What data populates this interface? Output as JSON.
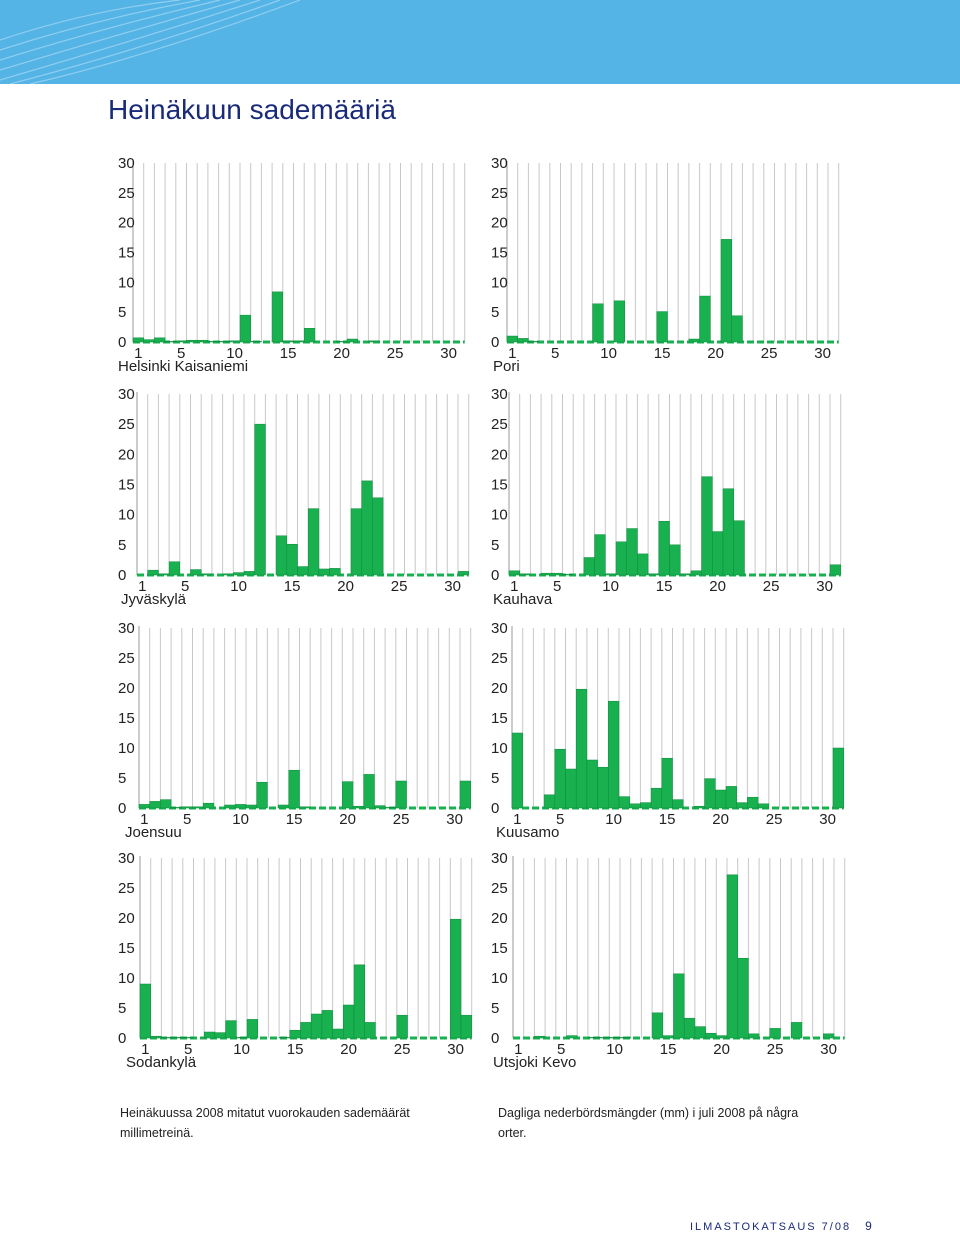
{
  "page": {
    "title": "Heinäkuun sademääriä",
    "caption_fi": "Heinäkuussa 2008 mitatut vuorokauden sademäärät millimetreinä.",
    "caption_sv": "Dagliga nederbördsmängder (mm) i juli 2008 på några orter.",
    "footer_publication": "ILMASTOKATSAUS 7/08",
    "footer_page": "9"
  },
  "colors": {
    "bar": "#19b050",
    "grid": "#c8c8c8",
    "dash": "#19b050",
    "text": "#222222",
    "title": "#1a2a7a",
    "banner": "#55b4e6"
  },
  "chart_data": [
    {
      "type": "bar",
      "title": "Helsinki Kaisaniemi",
      "ylim": [
        0,
        30
      ],
      "yticks": [
        "0",
        "5",
        "10",
        "15",
        "20",
        "25",
        "30"
      ],
      "xticks": [
        "1",
        "5",
        "10",
        "15",
        "20",
        "25",
        "30"
      ],
      "values": [
        0.7,
        0.4,
        0.7,
        0.1,
        0.2,
        0.3,
        0.3,
        0.1,
        0.1,
        0.2,
        4.5,
        0.1,
        0,
        8.4,
        0.2,
        0.2,
        2.3,
        0,
        0,
        0.1,
        0.5,
        0,
        0.2,
        0,
        0,
        0,
        0,
        0,
        0,
        0,
        0
      ]
    },
    {
      "type": "bar",
      "title": "Pori",
      "ylim": [
        0,
        30
      ],
      "yticks": [
        "0",
        "5",
        "10",
        "15",
        "20",
        "25",
        "30"
      ],
      "xticks": [
        "1",
        "5",
        "10",
        "15",
        "20",
        "25",
        "30"
      ],
      "values": [
        1.0,
        0.6,
        0.1,
        0,
        0,
        0,
        0,
        0,
        6.4,
        0,
        6.9,
        0,
        0,
        0,
        5.1,
        0,
        0,
        0.5,
        7.7,
        0,
        17.2,
        4.4,
        0,
        0,
        0,
        0,
        0,
        0,
        0,
        0,
        0
      ]
    },
    {
      "type": "bar",
      "title": "Jyväskylä",
      "ylim": [
        0,
        30
      ],
      "yticks": [
        "0",
        "5",
        "10",
        "15",
        "20",
        "25",
        "30"
      ],
      "xticks": [
        "1",
        "5",
        "10",
        "15",
        "20",
        "25",
        "30"
      ],
      "values": [
        0,
        0.8,
        0.2,
        2.2,
        0,
        0.9,
        0.2,
        0,
        0.2,
        0.4,
        0.6,
        25.0,
        0,
        6.5,
        5.1,
        1.4,
        11.0,
        1.0,
        1.1,
        0,
        11.0,
        15.6,
        12.8,
        0,
        0,
        0,
        0,
        0,
        0,
        0,
        0.6
      ]
    },
    {
      "type": "bar",
      "title": "Kauhava",
      "ylim": [
        0,
        30
      ],
      "yticks": [
        "0",
        "5",
        "10",
        "15",
        "20",
        "25",
        "30"
      ],
      "xticks": [
        "1",
        "5",
        "10",
        "15",
        "20",
        "25",
        "30"
      ],
      "values": [
        0.7,
        0.2,
        0,
        0.3,
        0.3,
        0.1,
        0,
        2.9,
        6.7,
        0.2,
        5.5,
        7.7,
        3.5,
        0.2,
        8.9,
        5.0,
        0.2,
        0.7,
        16.3,
        7.2,
        14.3,
        9.0,
        0,
        0,
        0,
        0,
        0,
        0,
        0,
        0,
        1.7
      ]
    },
    {
      "type": "bar",
      "title": "Joensuu",
      "ylim": [
        0,
        30
      ],
      "yticks": [
        "0",
        "5",
        "10",
        "15",
        "20",
        "25",
        "30"
      ],
      "xticks": [
        "1",
        "5",
        "10",
        "15",
        "20",
        "25",
        "30"
      ],
      "values": [
        0.6,
        1.1,
        1.4,
        0.1,
        0.2,
        0.2,
        0.8,
        0,
        0.5,
        0.6,
        0.5,
        4.3,
        0,
        0.5,
        6.3,
        0.2,
        0,
        0,
        0,
        4.4,
        0.3,
        5.6,
        0.4,
        0.1,
        4.5,
        0,
        0,
        0,
        0,
        0,
        4.5
      ]
    },
    {
      "type": "bar",
      "title": "Kuusamo",
      "ylim": [
        0,
        30
      ],
      "yticks": [
        "0",
        "5",
        "10",
        "15",
        "20",
        "25",
        "30"
      ],
      "xticks": [
        "1",
        "5",
        "10",
        "15",
        "20",
        "25",
        "30"
      ],
      "values": [
        12.5,
        0,
        0,
        2.2,
        9.8,
        6.5,
        19.8,
        8.0,
        6.8,
        17.8,
        1.9,
        0.7,
        0.9,
        3.3,
        8.3,
        1.4,
        0,
        0.3,
        4.9,
        3.0,
        3.6,
        0.9,
        1.8,
        0.7,
        0,
        0,
        0,
        0,
        0,
        0,
        10.0
      ]
    },
    {
      "type": "bar",
      "title": "Sodankylä",
      "ylim": [
        0,
        30
      ],
      "yticks": [
        "0",
        "5",
        "10",
        "15",
        "20",
        "25",
        "30"
      ],
      "xticks": [
        "1",
        "5",
        "10",
        "15",
        "20",
        "25",
        "30"
      ],
      "values": [
        9.0,
        0.3,
        0.1,
        0.1,
        0.1,
        0,
        1.0,
        0.9,
        2.9,
        0.1,
        3.1,
        0,
        0,
        0.1,
        1.3,
        2.6,
        4.0,
        4.6,
        1.5,
        5.5,
        12.2,
        2.6,
        0,
        0,
        3.8,
        0,
        0,
        0,
        0,
        19.8,
        3.8
      ]
    },
    {
      "type": "bar",
      "title": "Utsjoki Kevo",
      "ylim": [
        0,
        30
      ],
      "yticks": [
        "0",
        "5",
        "10",
        "15",
        "20",
        "25",
        "30"
      ],
      "xticks": [
        "1",
        "5",
        "10",
        "15",
        "20",
        "25",
        "30"
      ],
      "values": [
        0,
        0,
        0.3,
        0,
        0,
        0.4,
        0,
        0.1,
        0.1,
        0.1,
        0.1,
        0,
        0,
        4.2,
        0.4,
        10.7,
        3.3,
        1.9,
        0.8,
        0.4,
        27.2,
        13.3,
        0.7,
        0,
        1.6,
        0,
        2.6,
        0,
        0,
        0.7,
        0
      ]
    }
  ]
}
